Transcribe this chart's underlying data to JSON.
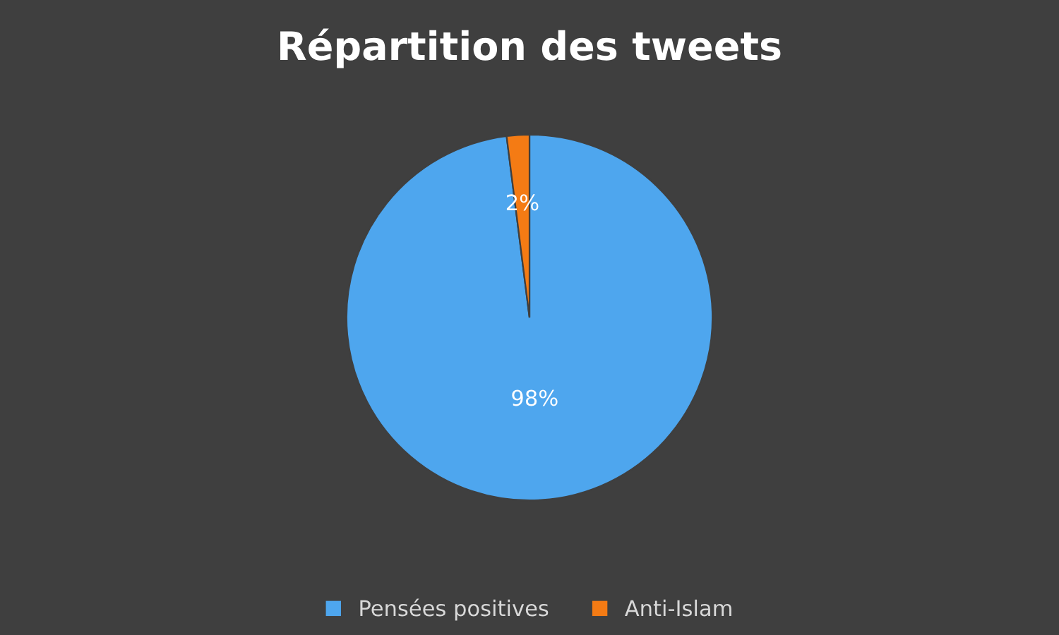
{
  "chart_data": {
    "type": "pie",
    "title": "Répartition des tweets",
    "categories": [
      "Pensées positives",
      "Anti-Islam"
    ],
    "values": [
      98,
      2
    ],
    "colors": [
      "#4ea6ee",
      "#f47b14"
    ],
    "value_labels": [
      "98%",
      "2%"
    ],
    "legend": "bottom"
  }
}
